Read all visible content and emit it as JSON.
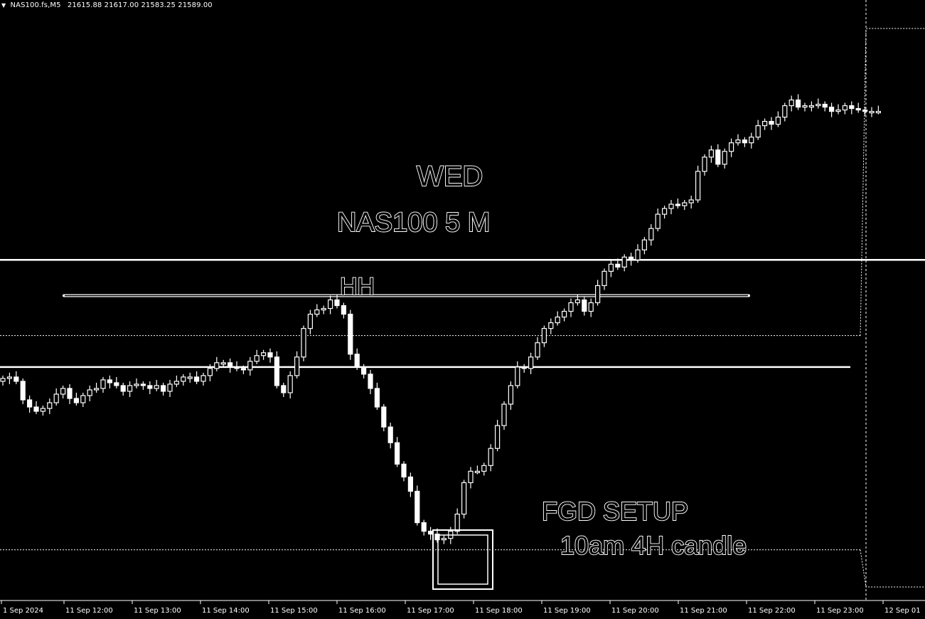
{
  "header": {
    "symbol": "NAS100.fs,M5",
    "ohlc": "21615.88 21617.00 21583.25 21589.00"
  },
  "annotations": {
    "day": "WED",
    "title": "NAS100 5 M",
    "hh": "HH",
    "setup": "FGD SETUP",
    "candle": "10am 4H candle"
  },
  "colors": {
    "background": "#000000",
    "foreground": "#ffffff"
  },
  "chart_data": {
    "type": "candlestick",
    "timeframe": "M5",
    "x_ticks": [
      "1 Sep 2024",
      "11 Sep 12:00",
      "11 Sep 13:00",
      "11 Sep 14:00",
      "11 Sep 15:00",
      "11 Sep 16:00",
      "11 Sep 17:00",
      "11 Sep 18:00",
      "11 Sep 19:00",
      "11 Sep 20:00",
      "11 Sep 21:00",
      "11 Sep 22:00",
      "11 Sep 23:00",
      "12 Sep 01"
    ],
    "ylim": [
      21270,
      21690
    ],
    "levels": [
      {
        "name": "upper-horizontal-line",
        "price": 21508,
        "style": "solid"
      },
      {
        "name": "hh-line",
        "price": 21483,
        "style": "solid"
      },
      {
        "name": "mid-horizontal-line",
        "price": 21433,
        "style": "solid"
      },
      {
        "name": "dotted-upper-level",
        "price": 21455,
        "style": "dotted"
      },
      {
        "name": "dotted-lower-level",
        "price": 21305,
        "style": "dotted"
      }
    ],
    "series": [
      {
        "values": [
          21425,
          21426,
          21423,
          21410,
          21405,
          21402,
          21404,
          21408,
          21414,
          21418,
          21411,
          21408,
          21413,
          21417,
          21418,
          21424,
          21422,
          21420,
          21416,
          21420,
          21421,
          21420,
          21418,
          21420,
          21416,
          21421,
          21423,
          21426,
          21426,
          21423,
          21427,
          21432,
          21436,
          21436,
          21433,
          21432,
          21431,
          21437,
          21441,
          21443,
          21440,
          21420,
          21415,
          21427,
          21440,
          21460,
          21470,
          21473,
          21474,
          21480,
          21476,
          21470,
          21442,
          21433,
          21428,
          21418,
          21405,
          21391,
          21380,
          21365,
          21356,
          21346,
          21324,
          21318,
          21316,
          21312,
          21313,
          21318,
          21330,
          21352,
          21360,
          21360,
          21364,
          21376,
          21392,
          21407,
          21420,
          21433,
          21432,
          21440,
          21450,
          21460,
          21464,
          21468,
          21472,
          21478,
          21480,
          21472,
          21478,
          21490,
          21500,
          21505,
          21503,
          21510,
          21508,
          21515,
          21522,
          21530,
          21540,
          21544,
          21547,
          21546,
          21548,
          21550,
          21570,
          21580,
          21585,
          21575,
          21584,
          21590,
          21592,
          21590,
          21594,
          21602,
          21605,
          21603,
          21608,
          21616,
          21620,
          21615,
          21616,
          21616,
          21617,
          21615,
          21612,
          21613,
          21616,
          21614,
          21613,
          21612,
          21612,
          21612
        ]
      }
    ]
  }
}
